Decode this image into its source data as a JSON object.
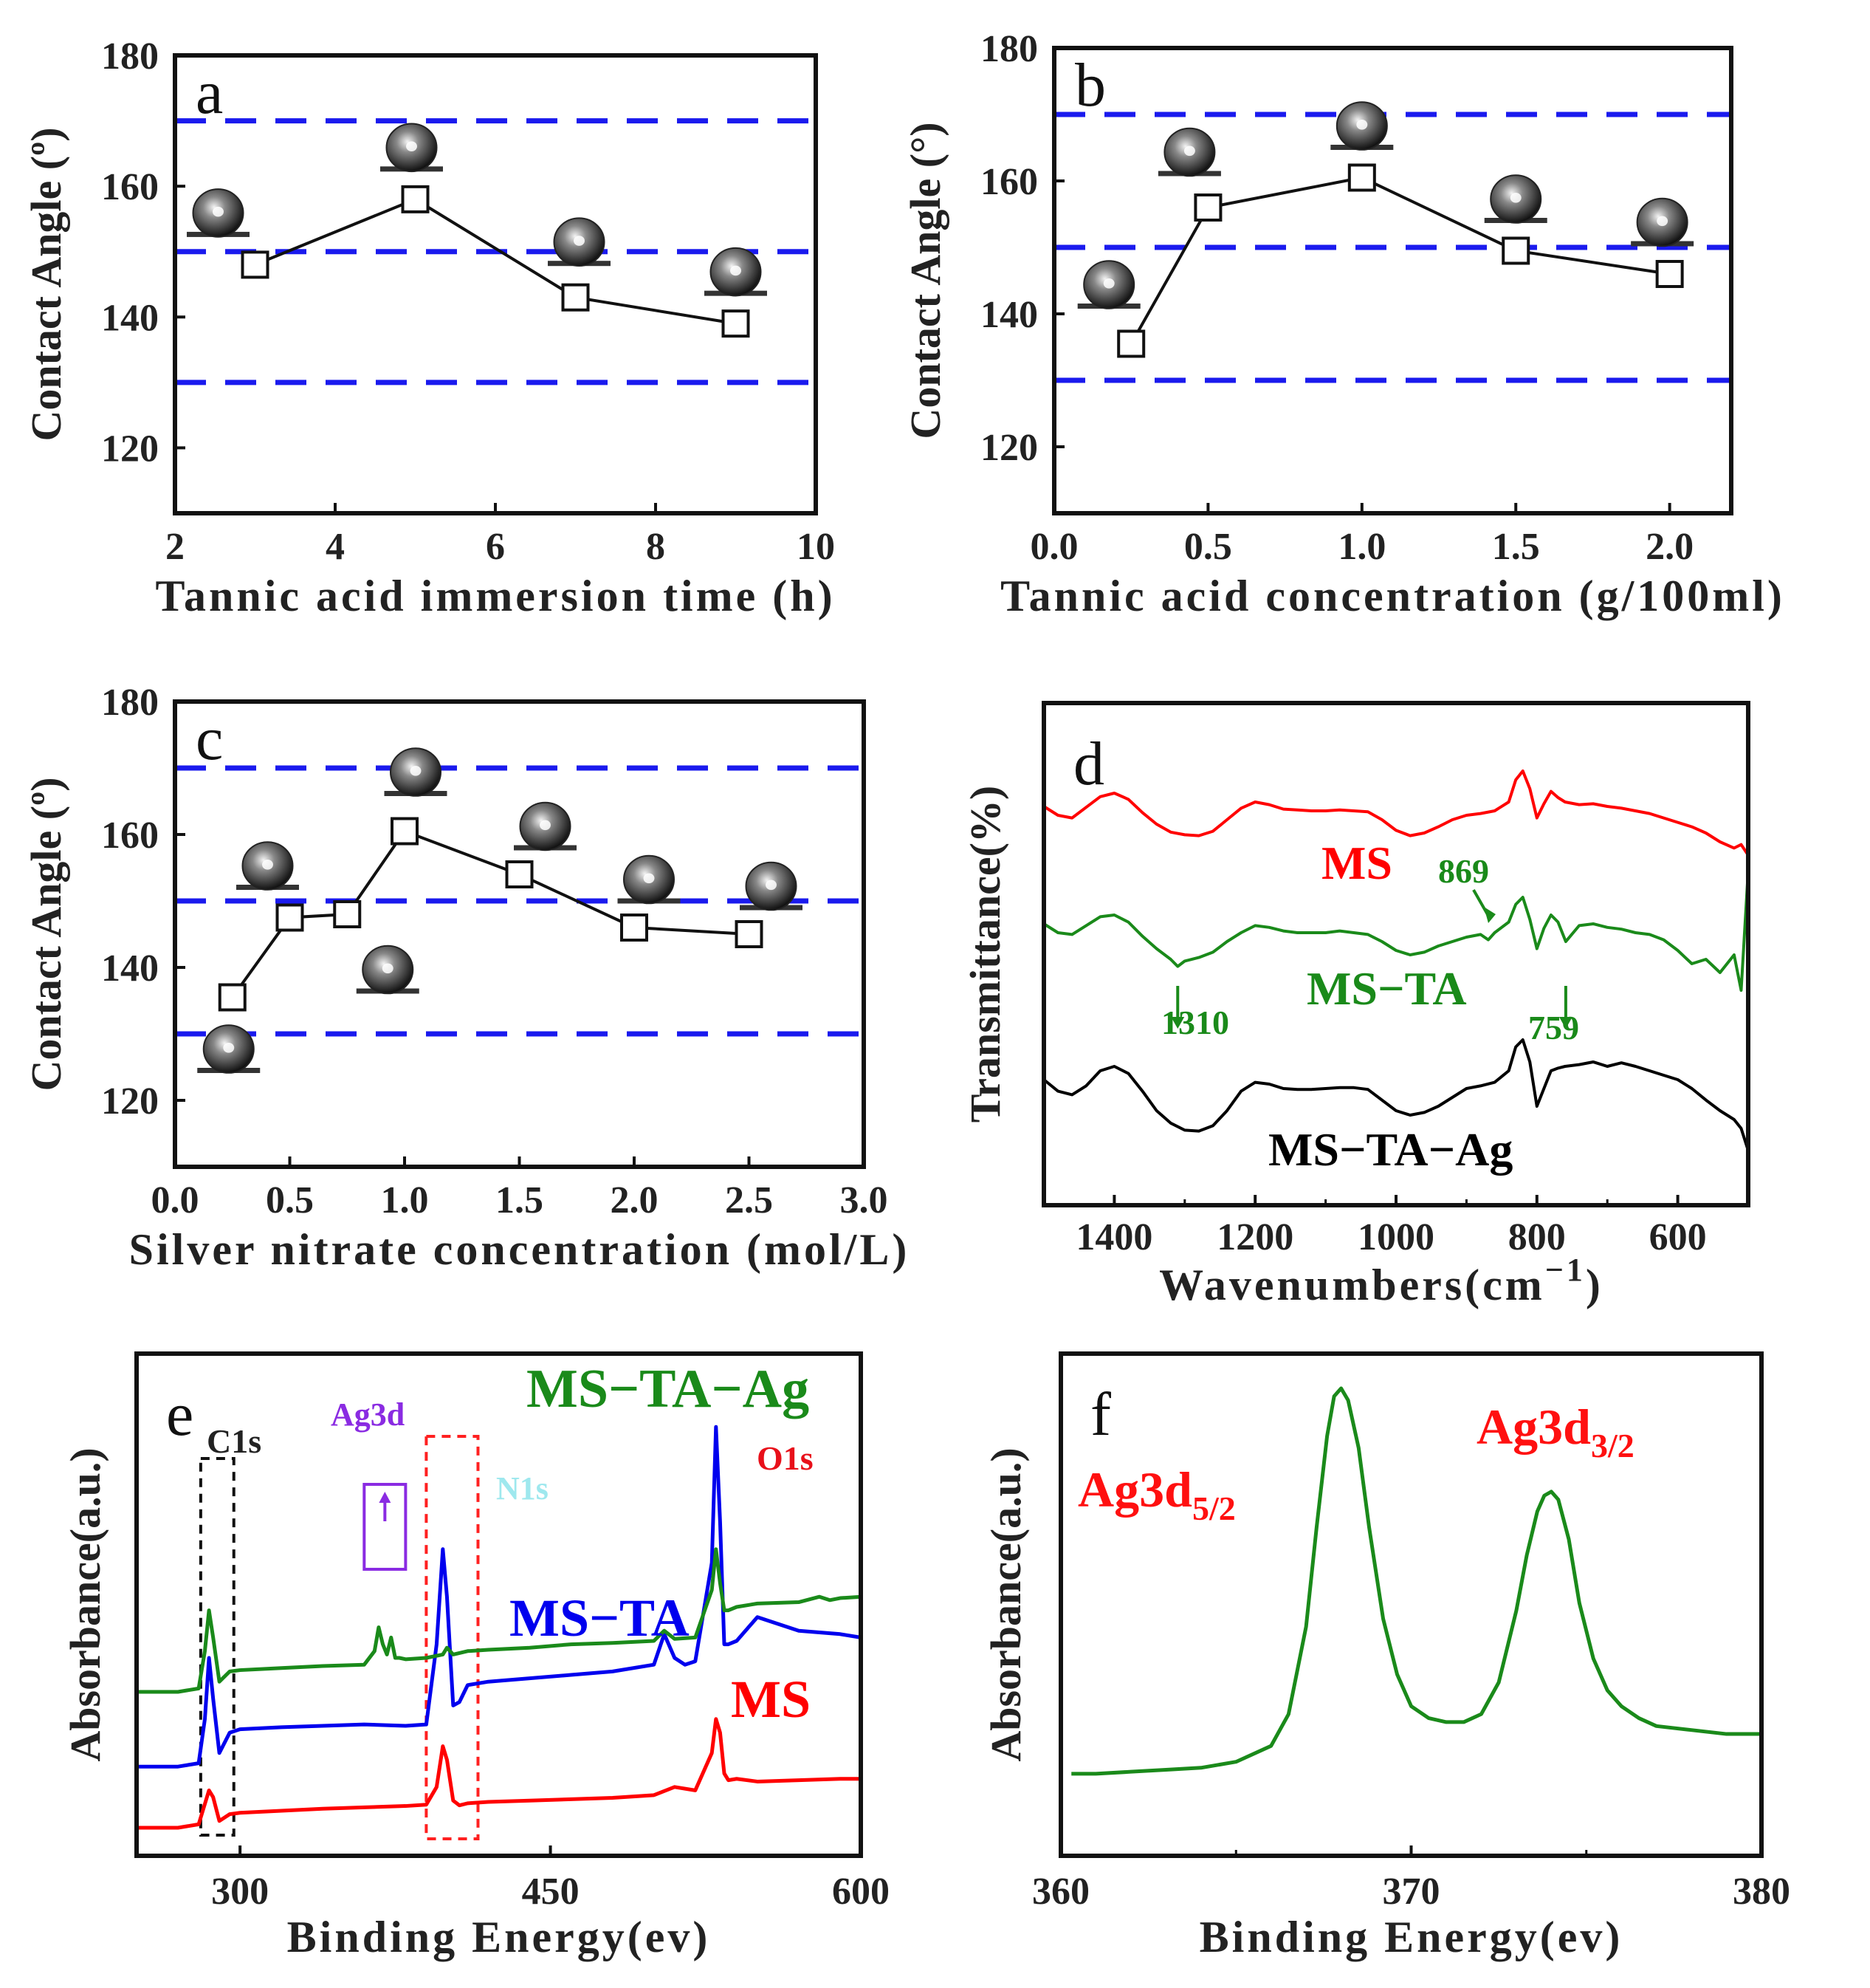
{
  "chart_data": [
    {
      "id": "a",
      "type": "line",
      "panel_label": "a",
      "xlabel": "Tannic acid immersion time (h)",
      "ylabel": "Contact Angle (º)",
      "xlim": [
        2,
        10
      ],
      "ylim": [
        110,
        180
      ],
      "xticks": [
        "2",
        "4",
        "6",
        "8",
        "10"
      ],
      "yticks": [
        "120",
        "140",
        "160",
        "180"
      ],
      "reference_lines": [
        130,
        150,
        170
      ],
      "x": [
        3,
        5,
        7,
        9
      ],
      "y": [
        148,
        158,
        143,
        139
      ]
    },
    {
      "id": "b",
      "type": "line",
      "panel_label": "b",
      "xlabel": "Tannic acid concentration (g/100ml)",
      "ylabel": "Contact Angle (°)",
      "xlim": [
        0,
        2.2
      ],
      "ylim": [
        110,
        180
      ],
      "xticks": [
        "0.0",
        "0.5",
        "1.0",
        "1.5",
        "2.0"
      ],
      "yticks": [
        "120",
        "140",
        "160",
        "180"
      ],
      "reference_lines": [
        130,
        150,
        170
      ],
      "x": [
        0.25,
        0.5,
        1.0,
        1.5,
        2.0
      ],
      "y": [
        135.5,
        156,
        160.5,
        149.5,
        146
      ]
    },
    {
      "id": "c",
      "type": "line",
      "panel_label": "c",
      "xlabel": "Silver nitrate concentration (mol/L)",
      "ylabel": "Contact Angle (º)",
      "xlim": [
        0,
        3.0
      ],
      "ylim": [
        110,
        180
      ],
      "xticks": [
        "0.0",
        "0.5",
        "1.0",
        "1.5",
        "2.0",
        "2.5",
        "3.0"
      ],
      "yticks": [
        "120",
        "140",
        "160",
        "180"
      ],
      "reference_lines": [
        130,
        150,
        170
      ],
      "x": [
        0.25,
        0.5,
        0.75,
        1.0,
        1.5,
        2.0,
        2.5
      ],
      "y": [
        135.5,
        147.5,
        148,
        160.5,
        154,
        146,
        145
      ]
    },
    {
      "id": "d",
      "type": "line",
      "panel_label": "d",
      "xlabel": "Wavenumbers(cm",
      "xlabel_sup": "−1",
      "xlabel_close": ")",
      "ylabel": "Transmittance(%)",
      "xlim": [
        1500,
        500
      ],
      "xticks": [
        "1400",
        "1200",
        "1000",
        "800",
        "600"
      ],
      "series": [
        {
          "name": "MS",
          "color": "#ff0000",
          "offset": 0,
          "x": [
            1500,
            1480,
            1460,
            1440,
            1420,
            1400,
            1380,
            1360,
            1340,
            1320,
            1300,
            1280,
            1260,
            1240,
            1220,
            1200,
            1180,
            1160,
            1140,
            1120,
            1100,
            1080,
            1060,
            1040,
            1020,
            1000,
            980,
            960,
            940,
            920,
            900,
            880,
            860,
            840,
            830,
            820,
            810,
            800,
            790,
            780,
            770,
            760,
            740,
            720,
            700,
            680,
            660,
            640,
            620,
            600,
            580,
            560,
            540,
            520,
            510,
            500
          ],
          "y": [
            0.85,
            0.75,
            0.72,
            0.84,
            0.96,
            1.0,
            0.93,
            0.78,
            0.65,
            0.56,
            0.53,
            0.52,
            0.57,
            0.7,
            0.83,
            0.9,
            0.87,
            0.82,
            0.81,
            0.8,
            0.8,
            0.81,
            0.8,
            0.79,
            0.7,
            0.58,
            0.52,
            0.55,
            0.62,
            0.7,
            0.75,
            0.77,
            0.8,
            0.9,
            1.15,
            1.25,
            1.05,
            0.72,
            0.88,
            1.02,
            0.95,
            0.9,
            0.87,
            0.88,
            0.85,
            0.83,
            0.8,
            0.77,
            0.72,
            0.67,
            0.62,
            0.55,
            0.45,
            0.38,
            0.42,
            0.3
          ]
        },
        {
          "name": "MS–TA",
          "color": "#1a8a1a",
          "offset": -1,
          "x": [
            1500,
            1480,
            1460,
            1440,
            1420,
            1400,
            1380,
            1360,
            1340,
            1320,
            1310,
            1300,
            1280,
            1260,
            1240,
            1220,
            1200,
            1180,
            1160,
            1140,
            1120,
            1100,
            1080,
            1060,
            1040,
            1020,
            1000,
            980,
            960,
            940,
            920,
            900,
            880,
            869,
            860,
            840,
            830,
            820,
            810,
            800,
            790,
            780,
            770,
            759,
            740,
            720,
            700,
            680,
            660,
            640,
            620,
            600,
            580,
            560,
            540,
            520,
            510,
            500
          ],
          "y": [
            0.9,
            0.8,
            0.78,
            0.88,
            0.98,
            1.0,
            0.92,
            0.76,
            0.62,
            0.5,
            0.42,
            0.48,
            0.52,
            0.58,
            0.7,
            0.8,
            0.88,
            0.86,
            0.82,
            0.8,
            0.8,
            0.8,
            0.82,
            0.8,
            0.78,
            0.7,
            0.6,
            0.55,
            0.58,
            0.65,
            0.7,
            0.75,
            0.78,
            0.72,
            0.8,
            0.92,
            1.12,
            1.2,
            0.95,
            0.62,
            0.85,
            1.0,
            0.92,
            0.7,
            0.88,
            0.9,
            0.86,
            0.84,
            0.8,
            0.78,
            0.72,
            0.6,
            0.45,
            0.5,
            0.35,
            0.55,
            0.15,
            1.5
          ]
        },
        {
          "name": "MS–TA–Ag",
          "color": "#000000",
          "offset": -2,
          "x": [
            1500,
            1480,
            1460,
            1440,
            1420,
            1400,
            1380,
            1360,
            1340,
            1320,
            1300,
            1280,
            1260,
            1240,
            1220,
            1200,
            1180,
            1160,
            1140,
            1120,
            1100,
            1080,
            1060,
            1040,
            1020,
            1000,
            980,
            960,
            940,
            920,
            900,
            880,
            860,
            840,
            830,
            820,
            810,
            800,
            790,
            780,
            770,
            760,
            740,
            720,
            700,
            680,
            660,
            640,
            620,
            600,
            580,
            560,
            540,
            520,
            510,
            500
          ],
          "y": [
            0.85,
            0.72,
            0.68,
            0.78,
            0.95,
            1.0,
            0.92,
            0.72,
            0.5,
            0.36,
            0.28,
            0.27,
            0.33,
            0.5,
            0.72,
            0.82,
            0.8,
            0.75,
            0.74,
            0.74,
            0.75,
            0.76,
            0.76,
            0.74,
            0.62,
            0.5,
            0.45,
            0.48,
            0.55,
            0.65,
            0.75,
            0.78,
            0.82,
            0.95,
            1.22,
            1.3,
            1.05,
            0.55,
            0.75,
            0.95,
            0.98,
            1.0,
            1.02,
            1.05,
            1.0,
            1.04,
            1.0,
            0.95,
            0.9,
            0.85,
            0.75,
            0.62,
            0.5,
            0.4,
            0.3,
            0.05
          ]
        }
      ],
      "annotations": [
        {
          "text": "MS",
          "color": "#ff0000"
        },
        {
          "text": "869",
          "color": "#1a8a1a"
        },
        {
          "text": "MS−TA",
          "color": "#1a8a1a"
        },
        {
          "text": "1310",
          "color": "#1a8a1a"
        },
        {
          "text": "759",
          "color": "#1a8a1a"
        },
        {
          "text": "MS−TA−Ag",
          "color": "#000000"
        }
      ]
    },
    {
      "id": "e",
      "type": "line",
      "panel_label": "e",
      "xlabel": "Binding Energy(ev)",
      "ylabel": "Absorbance(a.u.)",
      "xlim": [
        250,
        600
      ],
      "xticks": [
        "300",
        "450",
        "600"
      ],
      "series": [
        {
          "name": "MS",
          "color": "#ff0000",
          "offset": 0,
          "x": [
            250,
            270,
            280,
            283,
            285,
            287,
            290,
            295,
            300,
            320,
            340,
            360,
            380,
            390,
            395,
            398,
            400,
            403,
            406,
            410,
            420,
            440,
            460,
            480,
            500,
            510,
            520,
            528,
            530,
            532,
            534,
            536,
            540,
            550,
            570,
            590,
            600
          ],
          "y": [
            0,
            0,
            0.05,
            0.35,
            0.55,
            0.45,
            0.1,
            0.2,
            0.22,
            0.25,
            0.28,
            0.3,
            0.32,
            0.34,
            0.6,
            1.2,
            1.0,
            0.4,
            0.33,
            0.36,
            0.38,
            0.4,
            0.42,
            0.44,
            0.48,
            0.6,
            0.55,
            1.1,
            1.6,
            1.4,
            0.8,
            0.7,
            0.72,
            0.68,
            0.7,
            0.72,
            0.72
          ]
        },
        {
          "name": "MS–TA",
          "color": "#0000ee",
          "offset": 0.9,
          "x": [
            250,
            270,
            280,
            283,
            285,
            287,
            290,
            295,
            300,
            320,
            340,
            360,
            380,
            390,
            395,
            398,
            400,
            403,
            406,
            410,
            420,
            440,
            460,
            480,
            500,
            505,
            510,
            515,
            520,
            528,
            530,
            532,
            534,
            536,
            540,
            550,
            560,
            570,
            590,
            600
          ],
          "y": [
            0,
            0,
            0.05,
            0.7,
            1.6,
            1.0,
            0.2,
            0.5,
            0.55,
            0.58,
            0.6,
            0.62,
            0.6,
            0.62,
            1.8,
            3.2,
            2.5,
            0.9,
            0.95,
            1.2,
            1.25,
            1.3,
            1.35,
            1.4,
            1.5,
            1.95,
            1.6,
            1.5,
            1.55,
            3.0,
            5.0,
            3.6,
            1.8,
            1.8,
            1.85,
            2.2,
            2.1,
            2.0,
            1.95,
            1.9
          ]
        },
        {
          "name": "MS–TA–Ag",
          "color": "#1a8a1a",
          "offset": 2.0,
          "x": [
            250,
            270,
            280,
            283,
            285,
            287,
            290,
            295,
            300,
            320,
            340,
            360,
            365,
            367,
            369,
            371,
            373,
            375,
            377,
            380,
            390,
            398,
            400,
            403,
            410,
            420,
            440,
            460,
            480,
            500,
            505,
            510,
            520,
            528,
            530,
            532,
            534,
            536,
            540,
            550,
            570,
            580,
            585,
            590,
            600
          ],
          "y": [
            0,
            0,
            0.05,
            0.6,
            1.2,
            0.8,
            0.15,
            0.3,
            0.32,
            0.35,
            0.38,
            0.4,
            0.6,
            0.95,
            0.7,
            0.55,
            0.8,
            0.5,
            0.5,
            0.48,
            0.5,
            0.55,
            0.65,
            0.55,
            0.6,
            0.62,
            0.65,
            0.7,
            0.72,
            0.75,
            0.9,
            0.78,
            0.8,
            1.5,
            2.1,
            1.6,
            1.2,
            1.2,
            1.25,
            1.3,
            1.32,
            1.4,
            1.35,
            1.38,
            1.4
          ]
        }
      ],
      "annotations": [
        {
          "text": "MS−TA−Ag",
          "color": "#1a8a1a"
        },
        {
          "text": "C1s",
          "color": "#222222"
        },
        {
          "text": "Ag3d",
          "color": "#8a2be2"
        },
        {
          "text": "N1s",
          "color": "#9ee8ee"
        },
        {
          "text": "O1s",
          "color": "#e8101a"
        },
        {
          "text": "MS−TA",
          "color": "#0000ee"
        },
        {
          "text": "MS",
          "color": "#ff0000"
        }
      ]
    },
    {
      "id": "f",
      "type": "line",
      "panel_label": "f",
      "xlabel": "Binding Energy(ev)",
      "ylabel": "Absorbance(a.u.)",
      "xlim": [
        360,
        380
      ],
      "xticks": [
        "360",
        "370",
        "380"
      ],
      "series": [
        {
          "name": "Ag3d",
          "color": "#1a8a1a",
          "x": [
            360.3,
            361,
            362,
            363,
            364,
            365,
            366,
            366.5,
            367,
            367.3,
            367.6,
            367.8,
            368.0,
            368.2,
            368.5,
            368.8,
            369.2,
            369.6,
            370.0,
            370.5,
            371,
            371.5,
            372,
            372.5,
            373,
            373.3,
            373.6,
            373.8,
            374.0,
            374.2,
            374.5,
            374.8,
            375.2,
            375.6,
            376,
            376.5,
            377,
            378,
            379,
            380
          ],
          "y": [
            0.03,
            0.03,
            0.035,
            0.04,
            0.045,
            0.06,
            0.1,
            0.18,
            0.4,
            0.65,
            0.88,
            0.98,
            1.0,
            0.97,
            0.85,
            0.65,
            0.42,
            0.28,
            0.2,
            0.17,
            0.16,
            0.16,
            0.18,
            0.26,
            0.44,
            0.58,
            0.69,
            0.73,
            0.74,
            0.72,
            0.62,
            0.46,
            0.32,
            0.24,
            0.2,
            0.17,
            0.15,
            0.14,
            0.13,
            0.13
          ]
        }
      ],
      "annotations": [
        {
          "text": "Ag3d",
          "sub": "5/2",
          "color": "#ff1010"
        },
        {
          "text": "Ag3d",
          "sub": "3/2",
          "color": "#ff1010"
        }
      ]
    }
  ]
}
